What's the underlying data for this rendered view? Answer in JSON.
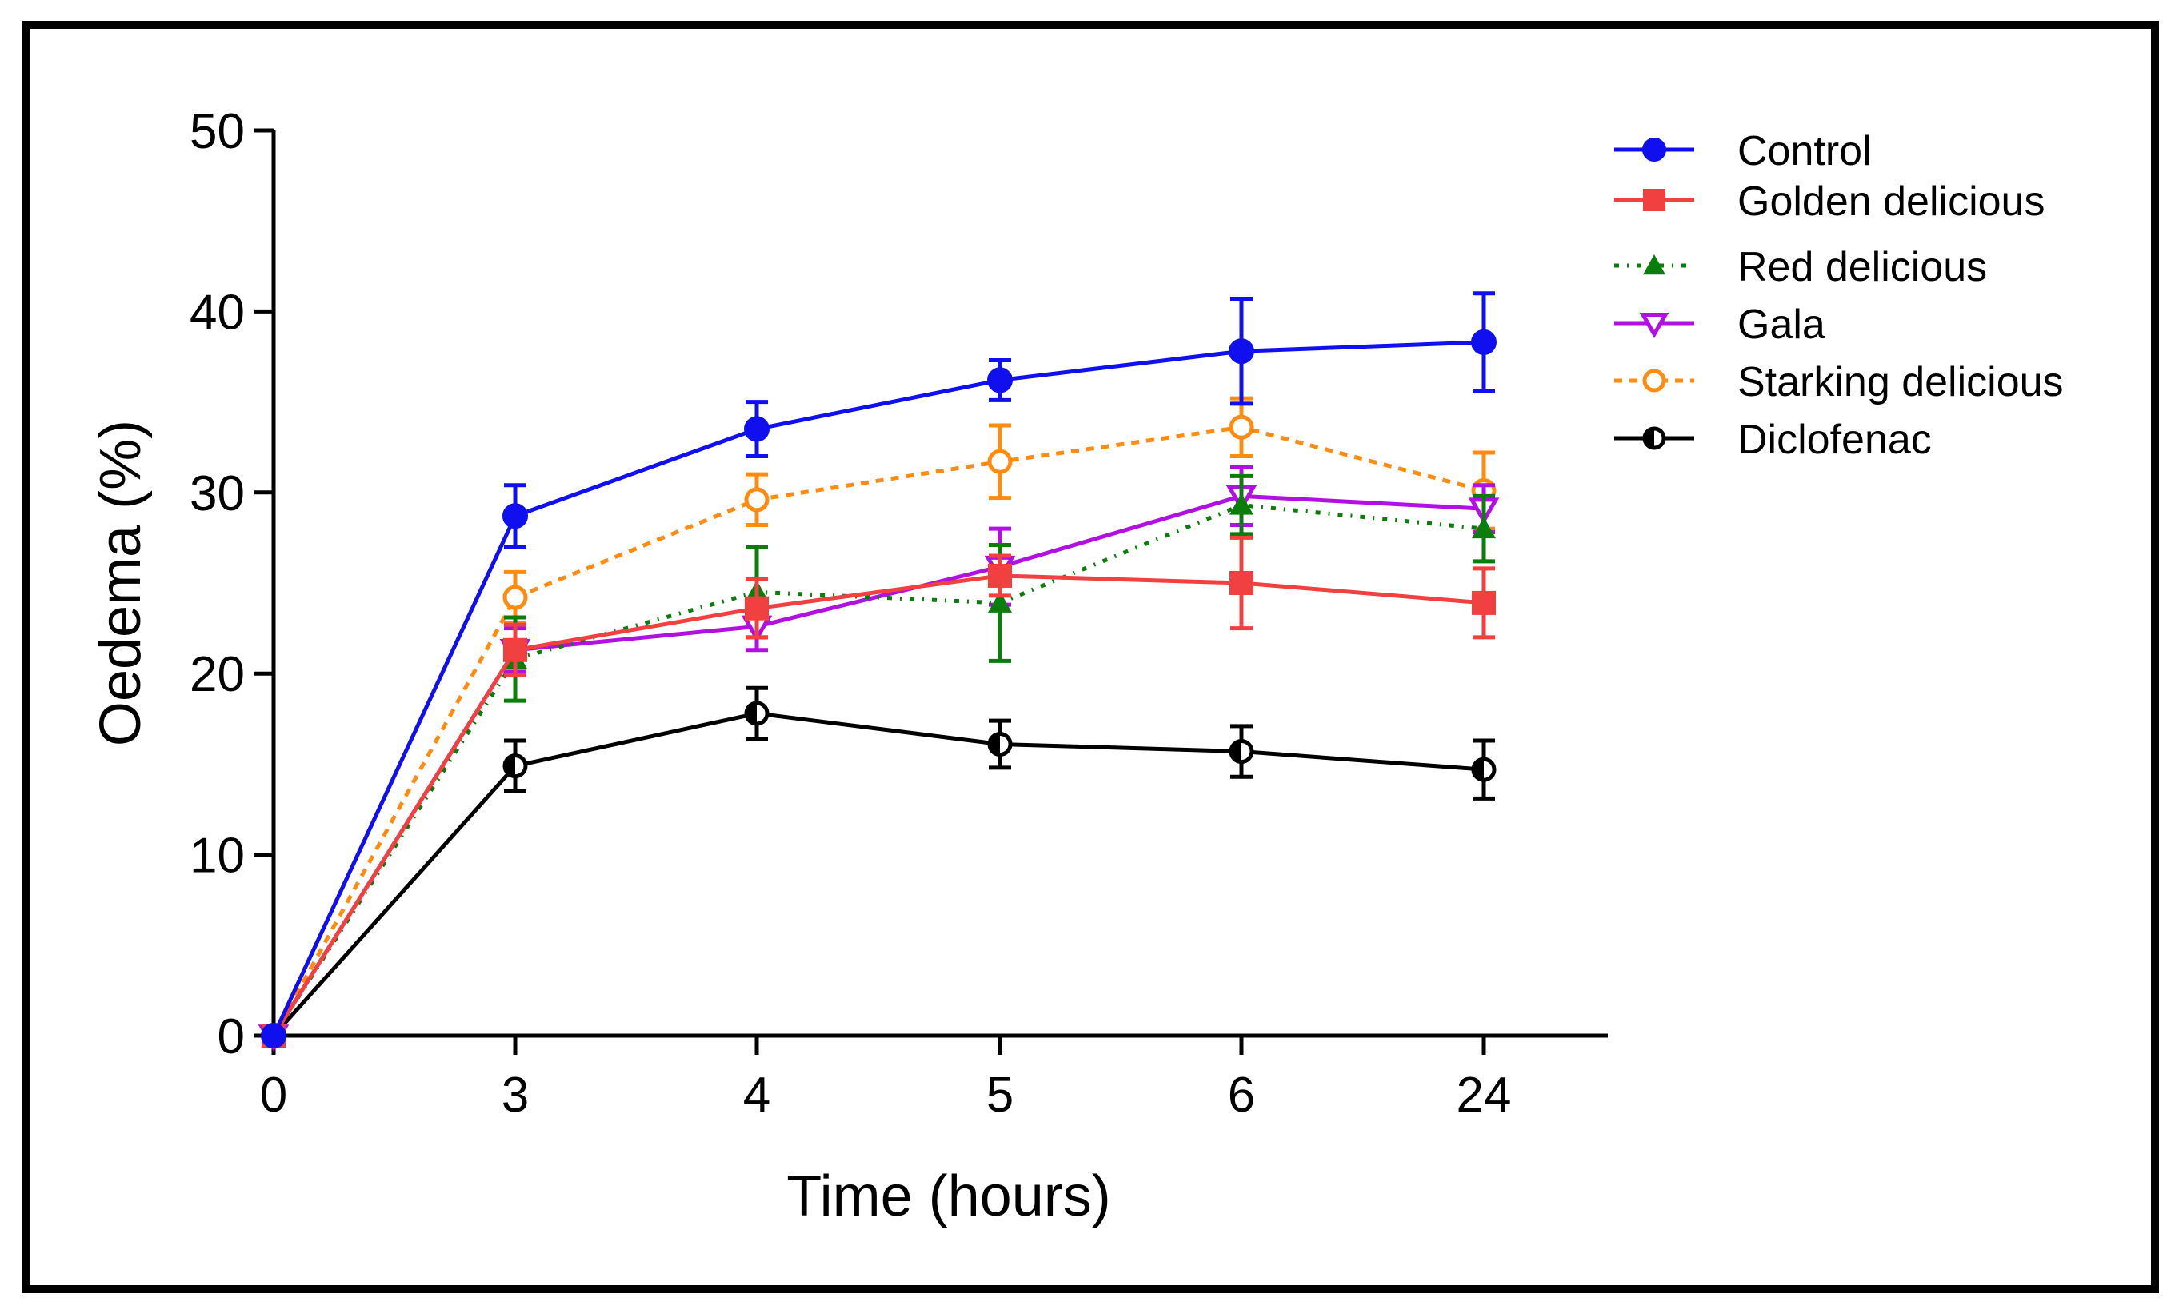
{
  "chart_data": {
    "type": "line",
    "title": "",
    "xlabel": "Time (hours)",
    "ylabel": "Oedema (%)",
    "categories": [
      "0",
      "3",
      "4",
      "5",
      "6",
      "24"
    ],
    "ylim": [
      0,
      50
    ],
    "yticks": [
      0,
      10,
      20,
      30,
      40,
      50
    ],
    "grid": false,
    "legend_position": "top-right",
    "series": [
      {
        "name": "Control",
        "color": "#1010ee",
        "marker": "filled-circle",
        "line": "solid",
        "values": [
          0,
          28.7,
          33.5,
          36.2,
          37.8,
          38.3
        ],
        "errors": [
          0,
          1.7,
          1.5,
          1.1,
          2.9,
          2.7
        ]
      },
      {
        "name": "Golden delicious",
        "color": "#f04040",
        "marker": "filled-square",
        "line": "solid",
        "values": [
          0,
          21.3,
          23.6,
          25.4,
          25.0,
          23.9
        ],
        "errors": [
          0,
          1.4,
          1.6,
          1.1,
          2.5,
          1.9
        ]
      },
      {
        "name": "Red delicious",
        "color": "#0a7d0a",
        "marker": "filled-triangle-up",
        "line": "dash-dot",
        "values": [
          0,
          20.8,
          24.5,
          23.9,
          29.3,
          28.0
        ],
        "errors": [
          0,
          2.3,
          2.5,
          3.2,
          1.6,
          1.8
        ]
      },
      {
        "name": "Gala",
        "color": "#b010e0",
        "marker": "open-triangle-down",
        "line": "solid",
        "values": [
          0,
          21.3,
          22.6,
          25.9,
          29.8,
          29.1
        ],
        "errors": [
          0,
          1.2,
          1.3,
          2.1,
          1.6,
          1.3
        ]
      },
      {
        "name": "Starking delicious",
        "color": "#ff8c10",
        "marker": "open-circle",
        "line": "dotted",
        "values": [
          0,
          24.2,
          29.6,
          31.7,
          33.6,
          30.1
        ],
        "errors": [
          0,
          1.4,
          1.4,
          2.0,
          1.6,
          2.1
        ]
      },
      {
        "name": "Diclofenac",
        "color": "#000000",
        "marker": "half-filled-circle",
        "line": "solid",
        "values": [
          0,
          14.9,
          17.8,
          16.1,
          15.7,
          14.7
        ],
        "errors": [
          0,
          1.4,
          1.4,
          1.3,
          1.4,
          1.6
        ]
      }
    ]
  }
}
